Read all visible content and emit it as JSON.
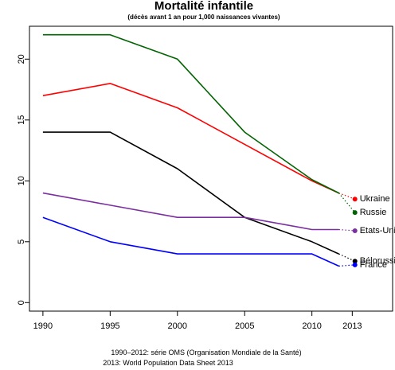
{
  "chart_data": {
    "type": "line",
    "title": "Mortalité infantile",
    "subtitle": "(décès avant 1 an pour 1,000 naissances vivantes)",
    "xlabel": "",
    "ylabel": "",
    "x_ticks": [
      1990,
      1995,
      2000,
      2005,
      2010,
      2013
    ],
    "y_ticks": [
      0,
      5,
      10,
      15,
      20
    ],
    "xlim": [
      1989,
      2016
    ],
    "ylim": [
      -0.7,
      22.7
    ],
    "grid": false,
    "series": [
      {
        "name": "Ukraine",
        "color": "#ff0000",
        "x": [
          1990,
          1995,
          2000,
          2005,
          2010,
          2012
        ],
        "y": [
          17,
          18,
          16,
          13,
          10,
          9
        ],
        "point_2013": 8.5
      },
      {
        "name": "Russie",
        "color": "#006400",
        "x": [
          1990,
          1995,
          2000,
          2005,
          2010,
          2012
        ],
        "y": [
          22,
          22,
          20,
          14,
          10.1,
          9
        ],
        "point_2013": 7.4
      },
      {
        "name": "Bélorussie",
        "color": "#000000",
        "x": [
          1990,
          1995,
          2000,
          2005,
          2010,
          2012
        ],
        "y": [
          14,
          14,
          11,
          7,
          5,
          4
        ],
        "point_2013": 3.4
      },
      {
        "name": "Etats-Unis",
        "color": "#7b2fa0",
        "x": [
          1990,
          1995,
          2000,
          2005,
          2010,
          2012
        ],
        "y": [
          9,
          8,
          7,
          7,
          6,
          6
        ],
        "point_2013": 5.9
      },
      {
        "name": "France",
        "color": "#0000ff",
        "x": [
          1990,
          1995,
          2000,
          2005,
          2010,
          2012
        ],
        "y": [
          7,
          5,
          4,
          4,
          4,
          3
        ],
        "point_2013": 3.1
      }
    ]
  },
  "footnotes": [
    "1990–2012: série OMS (Organisation Mondiale de la Santé)",
    "2013: World Population Data Sheet 2013"
  ]
}
